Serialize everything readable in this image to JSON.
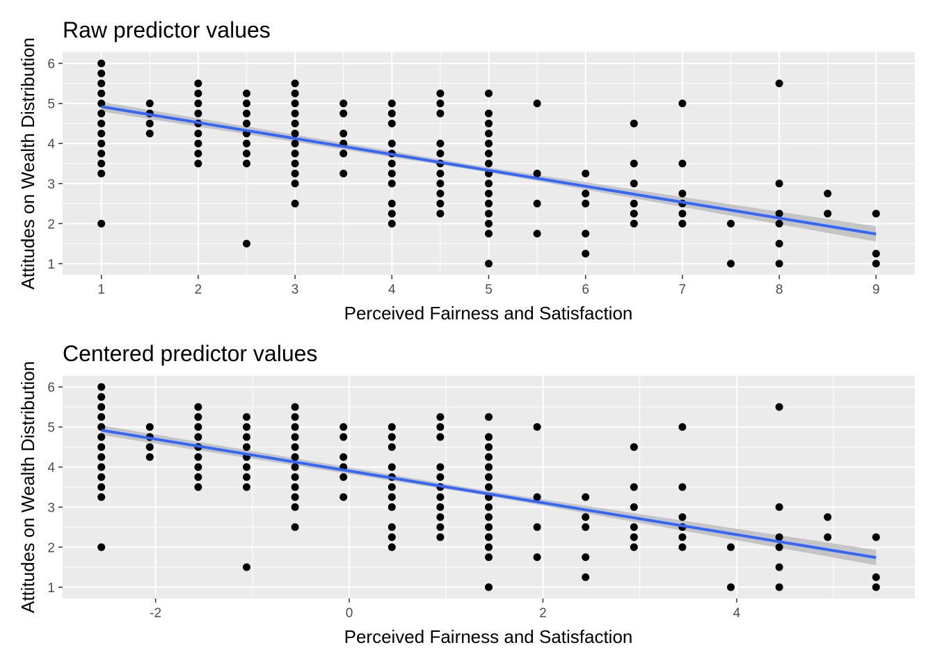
{
  "colors": {
    "panel_bg": "#ebebeb",
    "grid": "#ffffff",
    "points": "#000000",
    "fit_line": "#3366ff",
    "ribbon": "#bdbdbd",
    "tick_text": "#4d4d4d"
  },
  "chart_data": [
    {
      "type": "scatter",
      "title": "Raw predictor values",
      "xlabel": "Perceived Fairness and Satisfaction",
      "ylabel": "Attitudes on Wealth Distribution",
      "xlim": [
        0.6,
        9.4
      ],
      "ylim": [
        0.72,
        6.28
      ],
      "x_ticks": [
        1,
        2,
        3,
        4,
        5,
        6,
        7,
        8,
        9
      ],
      "y_ticks": [
        1,
        2,
        3,
        4,
        5,
        6
      ],
      "grid": true,
      "points": [
        [
          1,
          6
        ],
        [
          1,
          5.75
        ],
        [
          1,
          5.5
        ],
        [
          1,
          5.25
        ],
        [
          1,
          5
        ],
        [
          1,
          4.75
        ],
        [
          1,
          4.5
        ],
        [
          1,
          4.25
        ],
        [
          1,
          4
        ],
        [
          1,
          3.75
        ],
        [
          1,
          3.5
        ],
        [
          1,
          3.25
        ],
        [
          1,
          2
        ],
        [
          1.5,
          5
        ],
        [
          1.5,
          4.75
        ],
        [
          1.5,
          4.5
        ],
        [
          1.5,
          4.25
        ],
        [
          2,
          5.5
        ],
        [
          2,
          5.25
        ],
        [
          2,
          5
        ],
        [
          2,
          4.75
        ],
        [
          2,
          4.5
        ],
        [
          2,
          4.25
        ],
        [
          2,
          4
        ],
        [
          2,
          3.75
        ],
        [
          2,
          3.5
        ],
        [
          2.5,
          5.25
        ],
        [
          2.5,
          5
        ],
        [
          2.5,
          4.75
        ],
        [
          2.5,
          4.5
        ],
        [
          2.5,
          4.25
        ],
        [
          2.5,
          4
        ],
        [
          2.5,
          3.75
        ],
        [
          2.5,
          3.5
        ],
        [
          2.5,
          1.5
        ],
        [
          3,
          5.5
        ],
        [
          3,
          5.25
        ],
        [
          3,
          5
        ],
        [
          3,
          4.75
        ],
        [
          3,
          4.5
        ],
        [
          3,
          4.25
        ],
        [
          3,
          4
        ],
        [
          3,
          3.75
        ],
        [
          3,
          3.5
        ],
        [
          3,
          3.25
        ],
        [
          3,
          3
        ],
        [
          3,
          2.5
        ],
        [
          3.5,
          5
        ],
        [
          3.5,
          4.75
        ],
        [
          3.5,
          4.25
        ],
        [
          3.5,
          4
        ],
        [
          3.5,
          3.75
        ],
        [
          3.5,
          3.25
        ],
        [
          4,
          5
        ],
        [
          4,
          4.75
        ],
        [
          4,
          4.5
        ],
        [
          4,
          4
        ],
        [
          4,
          3.75
        ],
        [
          4,
          3.5
        ],
        [
          4,
          3.25
        ],
        [
          4,
          3
        ],
        [
          4,
          2.5
        ],
        [
          4,
          2.25
        ],
        [
          4,
          2
        ],
        [
          4.5,
          5.25
        ],
        [
          4.5,
          5
        ],
        [
          4.5,
          4.75
        ],
        [
          4.5,
          4
        ],
        [
          4.5,
          3.75
        ],
        [
          4.5,
          3.5
        ],
        [
          4.5,
          3.25
        ],
        [
          4.5,
          3
        ],
        [
          4.5,
          2.75
        ],
        [
          4.5,
          2.5
        ],
        [
          4.5,
          2.25
        ],
        [
          5,
          5.25
        ],
        [
          5,
          4.75
        ],
        [
          5,
          4.5
        ],
        [
          5,
          4.25
        ],
        [
          5,
          4
        ],
        [
          5,
          3.75
        ],
        [
          5,
          3.5
        ],
        [
          5,
          3.25
        ],
        [
          5,
          3
        ],
        [
          5,
          2.75
        ],
        [
          5,
          2.5
        ],
        [
          5,
          2.25
        ],
        [
          5,
          2
        ],
        [
          5,
          1.75
        ],
        [
          5,
          1
        ],
        [
          5.5,
          5
        ],
        [
          5.5,
          3.25
        ],
        [
          5.5,
          2.5
        ],
        [
          5.5,
          1.75
        ],
        [
          6,
          3.25
        ],
        [
          6,
          2.75
        ],
        [
          6,
          2.5
        ],
        [
          6,
          1.75
        ],
        [
          6,
          1.25
        ],
        [
          6.5,
          4.5
        ],
        [
          6.5,
          3.5
        ],
        [
          6.5,
          3
        ],
        [
          6.5,
          2.5
        ],
        [
          6.5,
          2.25
        ],
        [
          6.5,
          2
        ],
        [
          7,
          5
        ],
        [
          7,
          3.5
        ],
        [
          7,
          2.75
        ],
        [
          7,
          2.5
        ],
        [
          7,
          2.25
        ],
        [
          7,
          2
        ],
        [
          7.5,
          2
        ],
        [
          7.5,
          1
        ],
        [
          8,
          5.5
        ],
        [
          8,
          3
        ],
        [
          8,
          2.25
        ],
        [
          8,
          2
        ],
        [
          8,
          1.5
        ],
        [
          8,
          1
        ],
        [
          8.5,
          2.75
        ],
        [
          8.5,
          2.25
        ],
        [
          9,
          2.25
        ],
        [
          9,
          1.25
        ],
        [
          9,
          1
        ]
      ],
      "fit": {
        "x": [
          1,
          9
        ],
        "y": [
          4.92,
          1.74
        ]
      },
      "ribbon": {
        "x": [
          1,
          5,
          9
        ],
        "lower": [
          4.8,
          3.28,
          1.55
        ],
        "upper": [
          5.04,
          3.4,
          1.93
        ]
      }
    },
    {
      "type": "scatter",
      "title": "Centered predictor values",
      "xlabel": "Perceived Fairness and Satisfaction",
      "ylabel": "Attitudes on Wealth Distribution",
      "xlim": [
        -2.96,
        5.84
      ],
      "ylim": [
        0.72,
        6.28
      ],
      "x_ticks": [
        -2,
        0,
        2,
        4
      ],
      "y_ticks": [
        1,
        2,
        3,
        4,
        5,
        6
      ],
      "grid": true,
      "points": [
        [
          -2.56,
          6
        ],
        [
          -2.56,
          5.75
        ],
        [
          -2.56,
          5.5
        ],
        [
          -2.56,
          5.25
        ],
        [
          -2.56,
          5
        ],
        [
          -2.56,
          4.75
        ],
        [
          -2.56,
          4.5
        ],
        [
          -2.56,
          4.25
        ],
        [
          -2.56,
          4
        ],
        [
          -2.56,
          3.75
        ],
        [
          -2.56,
          3.5
        ],
        [
          -2.56,
          3.25
        ],
        [
          -2.56,
          2
        ],
        [
          -2.06,
          5
        ],
        [
          -2.06,
          4.75
        ],
        [
          -2.06,
          4.5
        ],
        [
          -2.06,
          4.25
        ],
        [
          -1.56,
          5.5
        ],
        [
          -1.56,
          5.25
        ],
        [
          -1.56,
          5
        ],
        [
          -1.56,
          4.75
        ],
        [
          -1.56,
          4.5
        ],
        [
          -1.56,
          4.25
        ],
        [
          -1.56,
          4
        ],
        [
          -1.56,
          3.75
        ],
        [
          -1.56,
          3.5
        ],
        [
          -1.06,
          5.25
        ],
        [
          -1.06,
          5
        ],
        [
          -1.06,
          4.75
        ],
        [
          -1.06,
          4.5
        ],
        [
          -1.06,
          4.25
        ],
        [
          -1.06,
          4
        ],
        [
          -1.06,
          3.75
        ],
        [
          -1.06,
          3.5
        ],
        [
          -1.06,
          1.5
        ],
        [
          -0.56,
          5.5
        ],
        [
          -0.56,
          5.25
        ],
        [
          -0.56,
          5
        ],
        [
          -0.56,
          4.75
        ],
        [
          -0.56,
          4.5
        ],
        [
          -0.56,
          4.25
        ],
        [
          -0.56,
          4
        ],
        [
          -0.56,
          3.75
        ],
        [
          -0.56,
          3.5
        ],
        [
          -0.56,
          3.25
        ],
        [
          -0.56,
          3
        ],
        [
          -0.56,
          2.5
        ],
        [
          -0.06,
          5
        ],
        [
          -0.06,
          4.75
        ],
        [
          -0.06,
          4.25
        ],
        [
          -0.06,
          4
        ],
        [
          -0.06,
          3.75
        ],
        [
          -0.06,
          3.25
        ],
        [
          0.44,
          5
        ],
        [
          0.44,
          4.75
        ],
        [
          0.44,
          4.5
        ],
        [
          0.44,
          4
        ],
        [
          0.44,
          3.75
        ],
        [
          0.44,
          3.5
        ],
        [
          0.44,
          3.25
        ],
        [
          0.44,
          3
        ],
        [
          0.44,
          2.5
        ],
        [
          0.44,
          2.25
        ],
        [
          0.44,
          2
        ],
        [
          0.94,
          5.25
        ],
        [
          0.94,
          5
        ],
        [
          0.94,
          4.75
        ],
        [
          0.94,
          4
        ],
        [
          0.94,
          3.75
        ],
        [
          0.94,
          3.5
        ],
        [
          0.94,
          3.25
        ],
        [
          0.94,
          3
        ],
        [
          0.94,
          2.75
        ],
        [
          0.94,
          2.5
        ],
        [
          0.94,
          2.25
        ],
        [
          1.44,
          5.25
        ],
        [
          1.44,
          4.75
        ],
        [
          1.44,
          4.5
        ],
        [
          1.44,
          4.25
        ],
        [
          1.44,
          4
        ],
        [
          1.44,
          3.75
        ],
        [
          1.44,
          3.5
        ],
        [
          1.44,
          3.25
        ],
        [
          1.44,
          3
        ],
        [
          1.44,
          2.75
        ],
        [
          1.44,
          2.5
        ],
        [
          1.44,
          2.25
        ],
        [
          1.44,
          2
        ],
        [
          1.44,
          1.75
        ],
        [
          1.44,
          1
        ],
        [
          1.94,
          5
        ],
        [
          1.94,
          3.25
        ],
        [
          1.94,
          2.5
        ],
        [
          1.94,
          1.75
        ],
        [
          2.44,
          3.25
        ],
        [
          2.44,
          2.75
        ],
        [
          2.44,
          2.5
        ],
        [
          2.44,
          1.75
        ],
        [
          2.44,
          1.25
        ],
        [
          2.94,
          4.5
        ],
        [
          2.94,
          3.5
        ],
        [
          2.94,
          3
        ],
        [
          2.94,
          2.5
        ],
        [
          2.94,
          2.25
        ],
        [
          2.94,
          2
        ],
        [
          3.44,
          5
        ],
        [
          3.44,
          3.5
        ],
        [
          3.44,
          2.75
        ],
        [
          3.44,
          2.5
        ],
        [
          3.44,
          2.25
        ],
        [
          3.44,
          2
        ],
        [
          3.94,
          2
        ],
        [
          3.94,
          1
        ],
        [
          4.44,
          5.5
        ],
        [
          4.44,
          3
        ],
        [
          4.44,
          2.25
        ],
        [
          4.44,
          2
        ],
        [
          4.44,
          1.5
        ],
        [
          4.44,
          1
        ],
        [
          4.94,
          2.75
        ],
        [
          4.94,
          2.25
        ],
        [
          5.44,
          2.25
        ],
        [
          5.44,
          1.25
        ],
        [
          5.44,
          1
        ]
      ],
      "fit": {
        "x": [
          -2.56,
          5.44
        ],
        "y": [
          4.92,
          1.74
        ]
      },
      "ribbon": {
        "x": [
          -2.56,
          1.44,
          5.44
        ],
        "lower": [
          4.8,
          3.28,
          1.55
        ],
        "upper": [
          5.04,
          3.4,
          1.93
        ]
      }
    }
  ]
}
